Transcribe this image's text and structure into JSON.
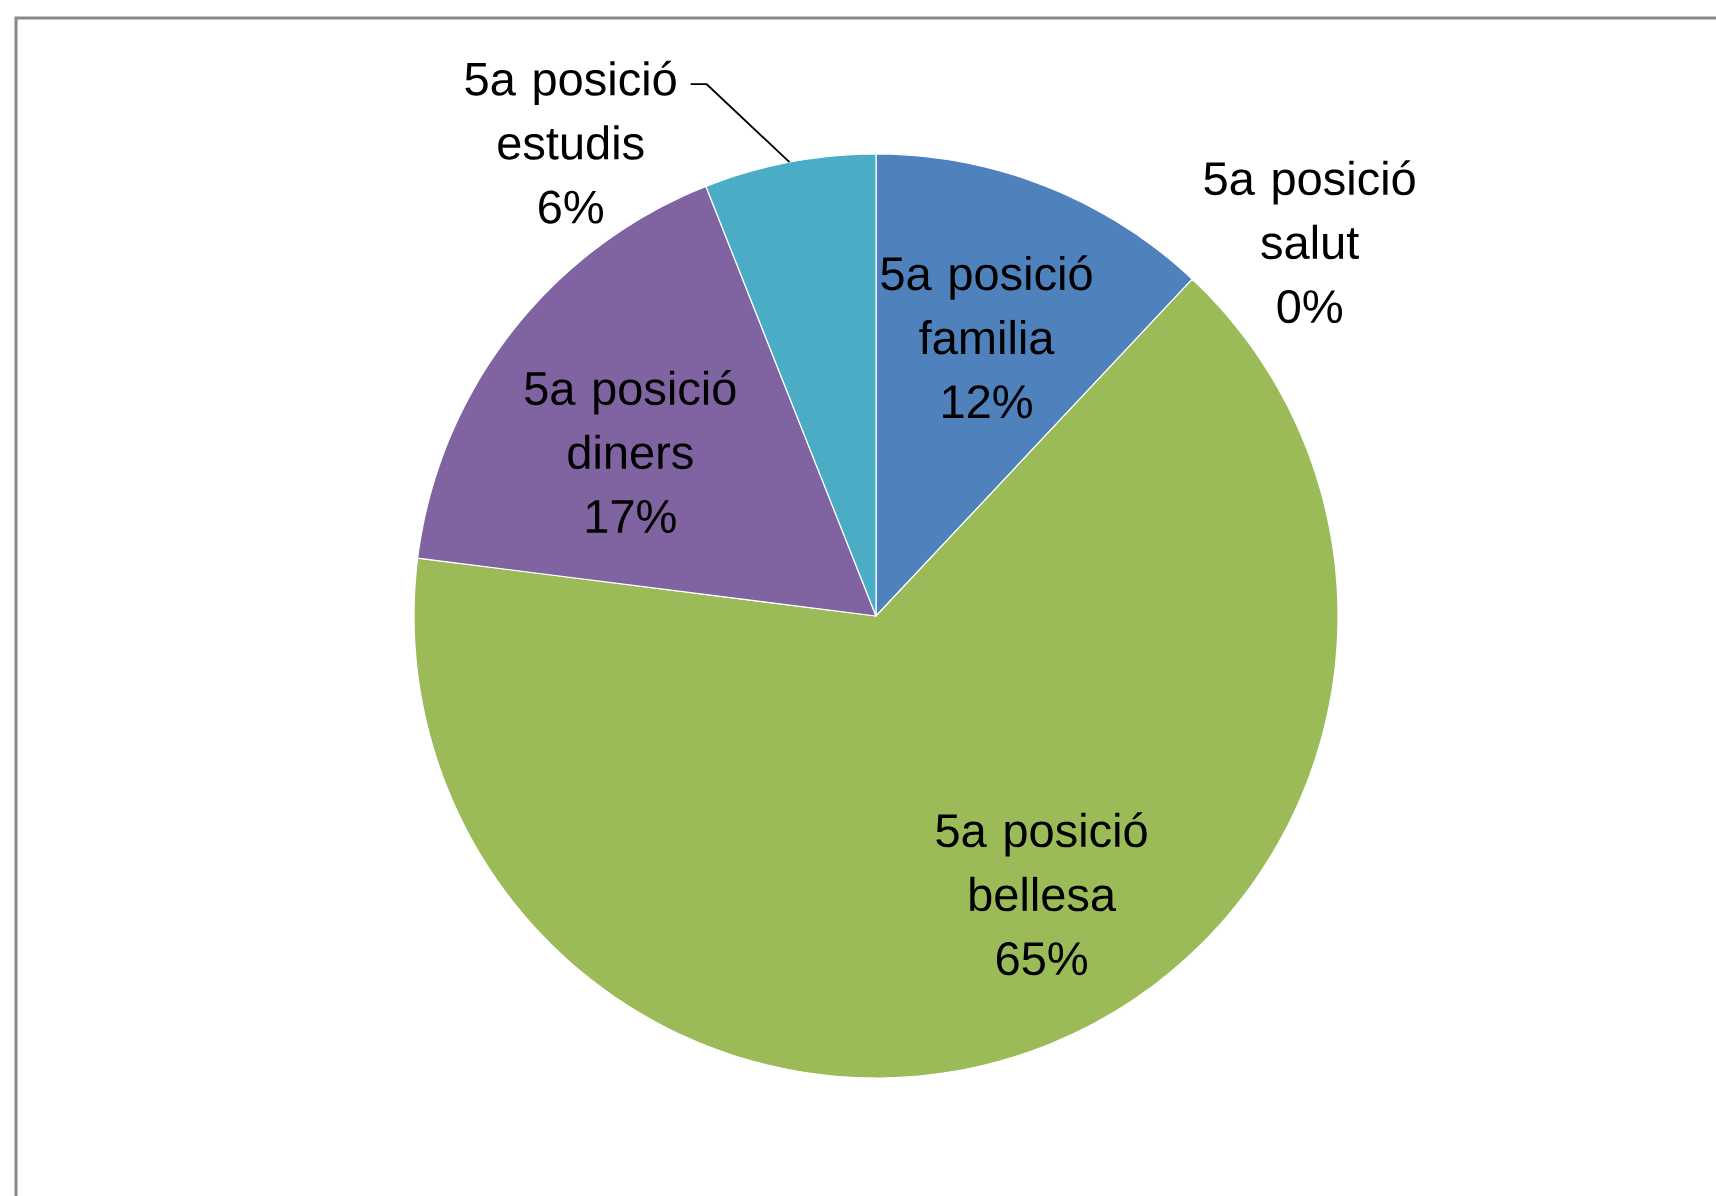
{
  "chart_data": {
    "type": "pie",
    "categories": [
      "5a posició familia",
      "5a posició salut",
      "5a posició bellesa",
      "5a posició diners",
      "5a posició estudis"
    ],
    "values": [
      12,
      0,
      65,
      17,
      6
    ],
    "value_labels": [
      "12%",
      "0%",
      "65%",
      "17%",
      "6%"
    ],
    "colors": [
      "#4f81bd",
      null,
      "#9bbb59",
      "#8064a2",
      "#4bacc6"
    ]
  }
}
